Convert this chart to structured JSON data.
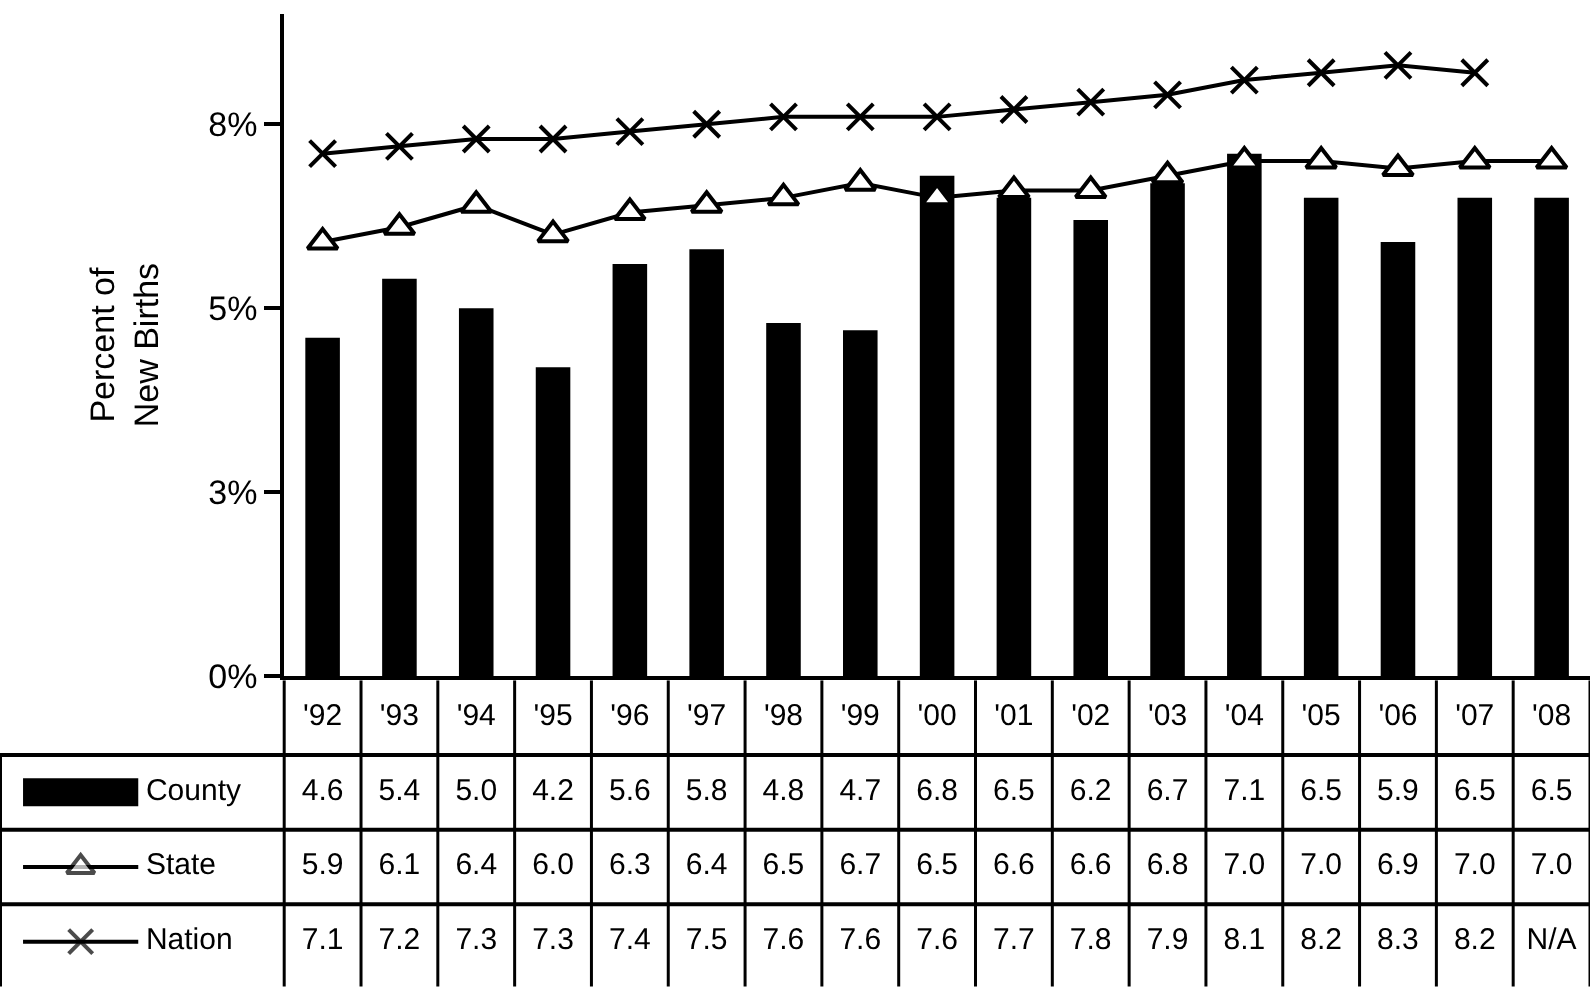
{
  "chart_data": {
    "type": "bar",
    "ylabel": "Percent of\nNew Births",
    "categories": [
      "'92",
      "'93",
      "'94",
      "'95",
      "'96",
      "'97",
      "'98",
      "'99",
      "'00",
      "'01",
      "'02",
      "'03",
      "'04",
      "'05",
      "'06",
      "'07",
      "'08"
    ],
    "series": [
      {
        "name": "County",
        "color": "#000000",
        "values": [
          4.6,
          5.4,
          5.0,
          4.2,
          5.6,
          5.8,
          4.8,
          4.7,
          6.8,
          6.5,
          6.2,
          6.7,
          7.1,
          6.5,
          5.9,
          6.5,
          6.5
        ],
        "value_labels": [
          "4.6",
          "5.4",
          "5.0",
          "4.2",
          "5.6",
          "5.8",
          "4.8",
          "4.7",
          "6.8",
          "6.5",
          "6.2",
          "6.7",
          "7.1",
          "6.5",
          "5.9",
          "6.5",
          "6.5"
        ]
      },
      {
        "name": "State",
        "type": "line",
        "color": "#000000",
        "marker": "triangle",
        "values": [
          5.9,
          6.1,
          6.4,
          6.0,
          6.3,
          6.4,
          6.5,
          6.7,
          6.5,
          6.6,
          6.6,
          6.8,
          7.0,
          7.0,
          6.9,
          7.0,
          7.0
        ],
        "value_labels": [
          "5.9",
          "6.1",
          "6.4",
          "6.0",
          "6.3",
          "6.4",
          "6.5",
          "6.7",
          "6.5",
          "6.6",
          "6.6",
          "6.8",
          "7.0",
          "7.0",
          "6.9",
          "7.0",
          "7.0"
        ]
      },
      {
        "name": "Nation",
        "type": "line",
        "color": "#000000",
        "marker": "cross",
        "values": [
          7.1,
          7.2,
          7.3,
          7.3,
          7.4,
          7.5,
          7.6,
          7.6,
          7.6,
          7.7,
          7.8,
          7.9,
          8.1,
          8.2,
          8.3,
          8.2,
          null
        ],
        "value_labels": [
          "7.1",
          "7.2",
          "7.3",
          "7.3",
          "7.4",
          "7.5",
          "7.6",
          "7.6",
          "7.6",
          "7.7",
          "7.8",
          "7.9",
          "8.1",
          "8.2",
          "8.3",
          "8.2",
          "N/A"
        ]
      }
    ],
    "ylim": [
      0,
      9
    ],
    "yticks": [
      {
        "value": 0,
        "label": "0%"
      },
      {
        "value": 2.5,
        "label": "3%"
      },
      {
        "value": 5,
        "label": "5%"
      },
      {
        "value": 7.5,
        "label": "8%"
      }
    ],
    "legend": "bottom"
  }
}
